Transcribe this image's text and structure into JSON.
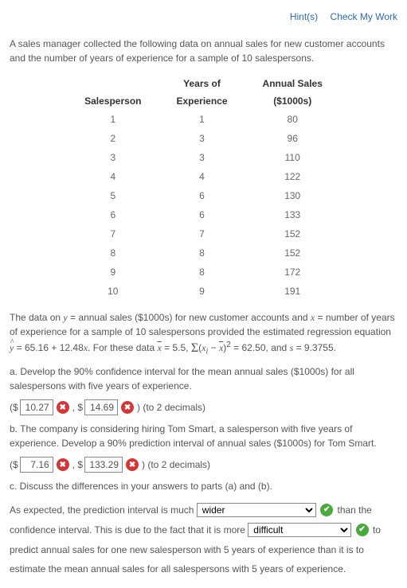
{
  "links": {
    "hints": "Hint(s)",
    "check": "Check My Work"
  },
  "intro": "A sales manager collected the following data on annual sales for new customer accounts and the number of years of experience for a sample of 10 salespersons.",
  "table": {
    "headers": {
      "c1a": "",
      "c1b": "Salesperson",
      "c2a": "Years of",
      "c2b": "Experience",
      "c3a": "Annual Sales",
      "c3b": "($1000s)"
    },
    "rows": [
      {
        "sp": "1",
        "yrs": "1",
        "sales": "80"
      },
      {
        "sp": "2",
        "yrs": "3",
        "sales": "96"
      },
      {
        "sp": "3",
        "yrs": "3",
        "sales": "110"
      },
      {
        "sp": "4",
        "yrs": "4",
        "sales": "122"
      },
      {
        "sp": "5",
        "yrs": "6",
        "sales": "130"
      },
      {
        "sp": "6",
        "yrs": "6",
        "sales": "133"
      },
      {
        "sp": "7",
        "yrs": "7",
        "sales": "152"
      },
      {
        "sp": "8",
        "yrs": "8",
        "sales": "152"
      },
      {
        "sp": "9",
        "yrs": "8",
        "sales": "172"
      },
      {
        "sp": "10",
        "yrs": "9",
        "sales": "191"
      }
    ]
  },
  "regression": {
    "pre": "The data on ",
    "y": "y",
    "ydesc": " = annual sales ($1000s) for new customer accounts and ",
    "x": "x",
    "xdesc": " = number of years of experience for a sample of 10 salespersons provided the estimated regression equation ",
    "yhat": "y",
    "eq": " = 65.16 + 12.48",
    "xv": "x",
    "post": ". For these data ",
    "xbar": "x",
    "xbarval": " = 5.5, ",
    "sigma": "Σ",
    "sumexpr_open": "(",
    "xi": "x",
    "sub_i": "i",
    "minus": " − ",
    "xbar2": "x",
    "sumexpr_close": ")",
    "sq": "2",
    "sumval": " = 62.50, and ",
    "s": "s",
    "sval": " = 9.3755."
  },
  "partA": {
    "prompt": "a. Develop the 90% confidence interval for the mean annual sales ($1000s) for all salespersons with five years of experience.",
    "open": "($",
    "v1": "10.27",
    "comma": ", $",
    "v2": "14.69",
    "close": ") (to 2 decimals)"
  },
  "partB": {
    "prompt": "b. The company is considering hiring Tom Smart, a salesperson with five years of experience. Develop a 90% prediction interval of annual sales ($1000s) for Tom Smart.",
    "open": "($",
    "v1": "7.16",
    "comma": ", $",
    "v2": "133.29",
    "close": ") (to 2 decimals)"
  },
  "partC": {
    "prompt": "c. Discuss the differences in your answers to parts (a) and (b).",
    "t1": "As expected, the prediction interval is much ",
    "sel1": "wider",
    "t2": " than the confidence interval. This is due to the fact that it is more ",
    "sel2": "difficult",
    "t3": " to predict annual sales for one new salesperson with 5 years of experience than it is to estimate the mean annual sales for all salespersons with 5 years of experience."
  },
  "marks": {
    "wrong": "✖",
    "right": "✔"
  }
}
